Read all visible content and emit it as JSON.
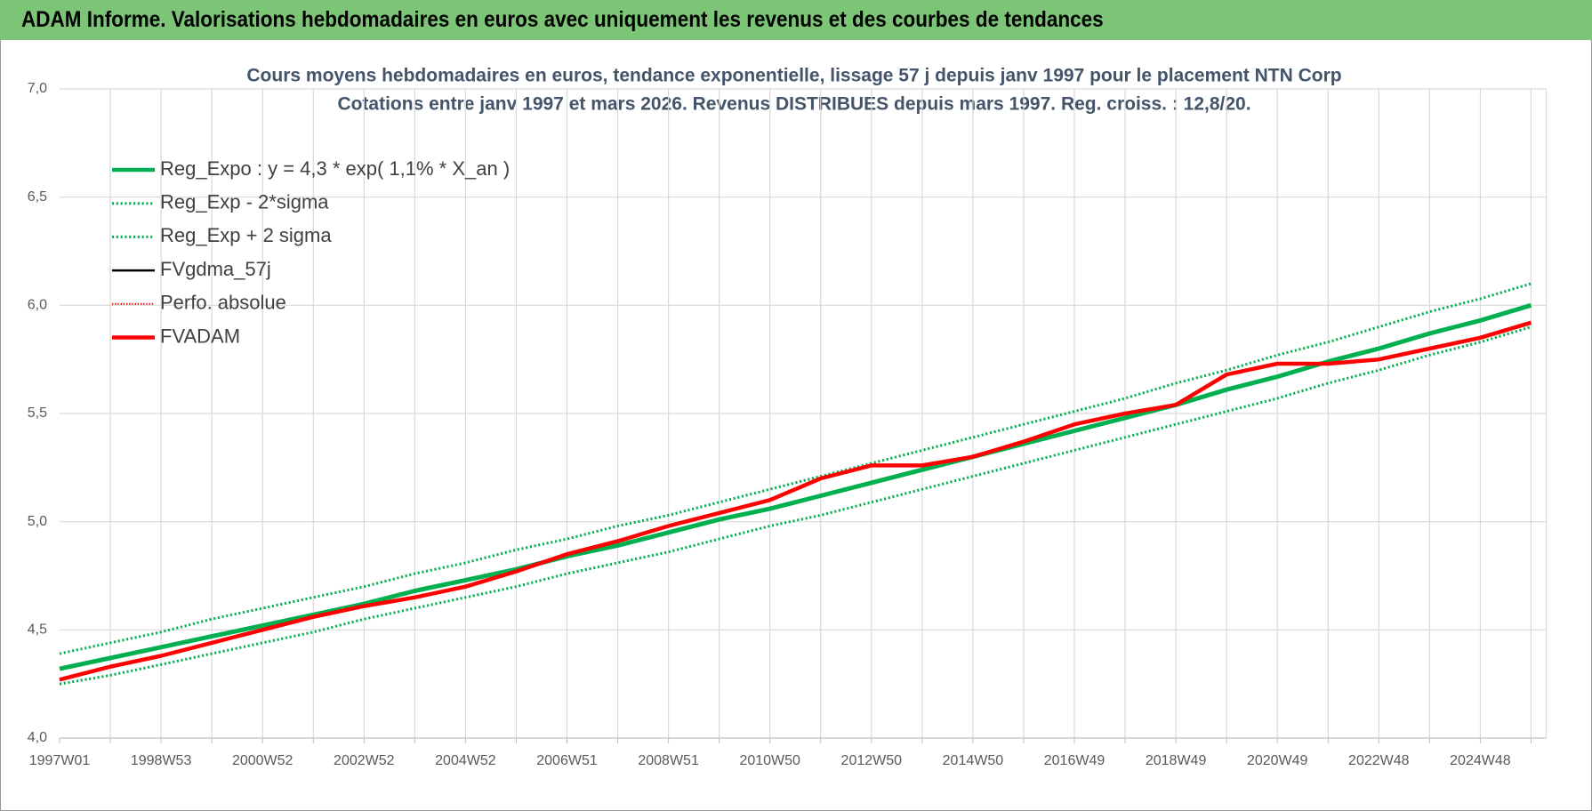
{
  "header": {
    "title": "ADAM Informe. Valorisations hebdomadaires en euros avec uniquement les revenus et des courbes de tendances"
  },
  "chart_data": {
    "type": "line",
    "title": "Cours moyens hebdomadaires en euros, tendance exponentielle, lissage 57 j depuis janv 1997 pour le placement NTN Corp",
    "subtitle": "Cotations entre janv 1997 et mars 2026. Revenus DISTRIBUES depuis mars 1997. Reg. croiss. : 12,8/20.",
    "categories": [
      "1997W01",
      null,
      "1998W53",
      null,
      "2000W52",
      null,
      "2002W52",
      null,
      "2004W52",
      null,
      "2006W51",
      null,
      "2008W51",
      null,
      "2010W50",
      null,
      "2012W50",
      null,
      "2014W50",
      null,
      "2016W49",
      null,
      "2018W49",
      null,
      "2020W49",
      null,
      "2022W48",
      null,
      "2024W48",
      null
    ],
    "ylim": [
      4.0,
      7.0
    ],
    "yticks": [
      {
        "value": 4.0,
        "label": "4,0"
      },
      {
        "value": 4.5,
        "label": "4,5"
      },
      {
        "value": 5.0,
        "label": "5,0"
      },
      {
        "value": 5.5,
        "label": "5,5"
      },
      {
        "value": 6.0,
        "label": "6,0"
      },
      {
        "value": 6.5,
        "label": "6,5"
      },
      {
        "value": 7.0,
        "label": "7,0"
      }
    ],
    "grid": true,
    "legend": "top-left",
    "series": [
      {
        "name": "Reg_Expo : y = 4,3 * exp( 1,1% *  X_an )",
        "color": "#00b050",
        "style": "solid",
        "width": 5,
        "values": [
          4.32,
          4.37,
          4.42,
          4.47,
          4.52,
          4.57,
          4.62,
          4.68,
          4.73,
          4.78,
          4.84,
          4.89,
          4.95,
          5.01,
          5.06,
          5.12,
          5.18,
          5.24,
          5.3,
          5.36,
          5.42,
          5.48,
          5.54,
          5.61,
          5.67,
          5.74,
          5.8,
          5.87,
          5.93,
          6.0
        ]
      },
      {
        "name": "Reg_Exp - 2*sigma",
        "color": "#00b050",
        "style": "dotted",
        "width": 3,
        "values": [
          4.25,
          4.29,
          4.34,
          4.39,
          4.44,
          4.49,
          4.55,
          4.6,
          4.65,
          4.7,
          4.76,
          4.81,
          4.86,
          4.92,
          4.98,
          5.03,
          5.09,
          5.15,
          5.21,
          5.27,
          5.33,
          5.39,
          5.45,
          5.51,
          5.57,
          5.64,
          5.7,
          5.77,
          5.83,
          5.9
        ]
      },
      {
        "name": "Reg_Exp + 2 sigma",
        "color": "#00b050",
        "style": "dotted",
        "width": 3,
        "values": [
          4.39,
          4.44,
          4.49,
          4.55,
          4.6,
          4.65,
          4.7,
          4.76,
          4.81,
          4.87,
          4.92,
          4.98,
          5.03,
          5.09,
          5.15,
          5.21,
          5.27,
          5.33,
          5.39,
          5.45,
          5.51,
          5.57,
          5.64,
          5.7,
          5.77,
          5.83,
          5.9,
          5.97,
          6.03,
          6.1
        ]
      },
      {
        "name": "FVgdma_57j",
        "color": "#000000",
        "style": "solid",
        "width": 2.5,
        "values": [
          4.27,
          4.33,
          4.38,
          4.44,
          4.5,
          4.56,
          4.61,
          4.65,
          4.7,
          4.77,
          4.85,
          4.91,
          4.98,
          5.04,
          5.1,
          5.2,
          5.26,
          5.26,
          5.3,
          5.37,
          5.45,
          5.5,
          5.54,
          5.68,
          5.73,
          5.73,
          5.75,
          5.8,
          5.85,
          5.92
        ]
      },
      {
        "name": "Perfo. absolue",
        "color": "#ff0000",
        "style": "dotted",
        "width": 2,
        "values": [
          4.27,
          4.33,
          4.38,
          4.44,
          4.5,
          4.56,
          4.61,
          4.65,
          4.7,
          4.77,
          4.85,
          4.91,
          4.98,
          5.04,
          5.1,
          5.2,
          5.26,
          5.26,
          5.3,
          5.37,
          5.45,
          5.5,
          5.54,
          5.68,
          5.73,
          5.73,
          5.75,
          5.8,
          5.85,
          5.92
        ]
      },
      {
        "name": "FVADAM",
        "color": "#ff0000",
        "style": "solid",
        "width": 4.5,
        "values": [
          4.27,
          4.33,
          4.38,
          4.44,
          4.5,
          4.56,
          4.61,
          4.65,
          4.7,
          4.77,
          4.85,
          4.91,
          4.98,
          5.04,
          5.1,
          5.2,
          5.26,
          5.26,
          5.3,
          5.37,
          5.45,
          5.5,
          5.54,
          5.68,
          5.73,
          5.73,
          5.75,
          5.8,
          5.85,
          5.92
        ]
      }
    ]
  }
}
